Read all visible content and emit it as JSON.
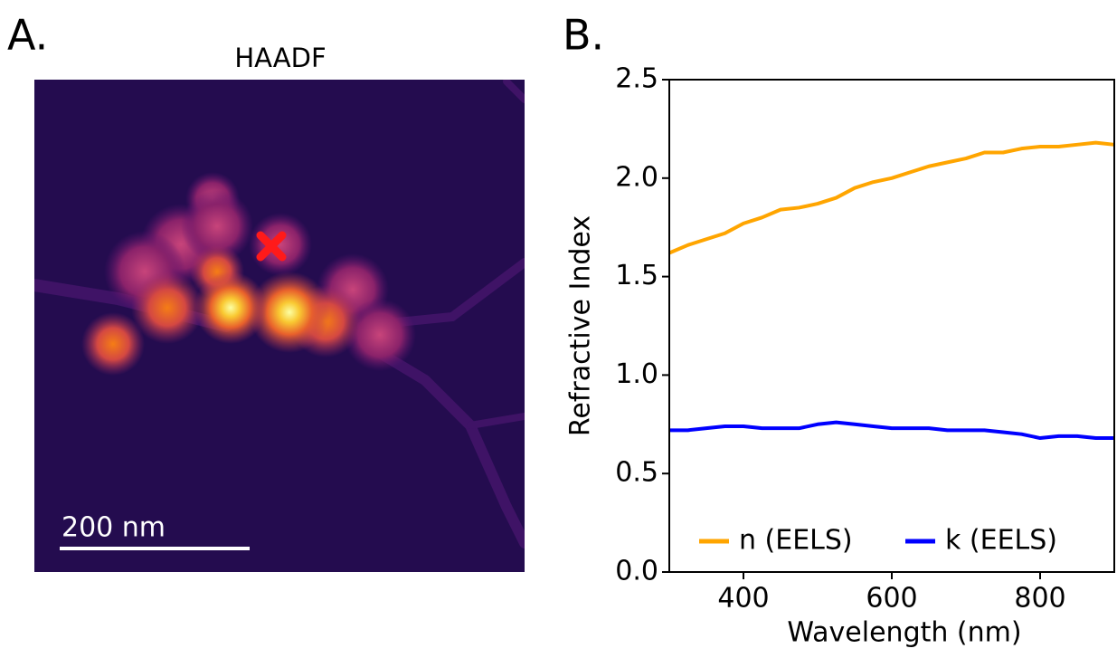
{
  "panels": [
    {
      "label": "A.",
      "title": "HAADF",
      "scale_bar": "200 nm"
    }
  ],
  "chart_data": {
    "type": "line",
    "panel_label": "B.",
    "xlabel": "Wavelength (nm)",
    "ylabel": "Refractive Index",
    "x": [
      300,
      325,
      350,
      375,
      400,
      425,
      450,
      475,
      500,
      525,
      550,
      575,
      600,
      625,
      650,
      675,
      700,
      725,
      750,
      775,
      800,
      825,
      850,
      875,
      900
    ],
    "series": [
      {
        "name": "n (EELS)",
        "color": "#ffa500",
        "values": [
          1.62,
          1.66,
          1.69,
          1.72,
          1.77,
          1.8,
          1.84,
          1.85,
          1.87,
          1.9,
          1.95,
          1.98,
          2.0,
          2.03,
          2.06,
          2.08,
          2.1,
          2.13,
          2.13,
          2.15,
          2.16,
          2.16,
          2.17,
          2.18,
          2.17
        ]
      },
      {
        "name": "k (EELS)",
        "color": "#0000ff",
        "values": [
          0.72,
          0.72,
          0.73,
          0.74,
          0.74,
          0.73,
          0.73,
          0.73,
          0.75,
          0.76,
          0.75,
          0.74,
          0.73,
          0.73,
          0.73,
          0.72,
          0.72,
          0.72,
          0.71,
          0.7,
          0.68,
          0.69,
          0.69,
          0.68,
          0.68
        ]
      }
    ],
    "xlim": [
      300,
      900
    ],
    "ylim": [
      0,
      2.5
    ],
    "xticks": [
      400,
      600,
      800
    ],
    "yticks": [
      {
        "value": 0,
        "label": "0.0"
      },
      0.5,
      {
        "value": 1,
        "label": "1.0"
      },
      1.5,
      {
        "value": 2,
        "label": "2.0"
      },
      2.5
    ],
    "legend": "lower center"
  }
}
